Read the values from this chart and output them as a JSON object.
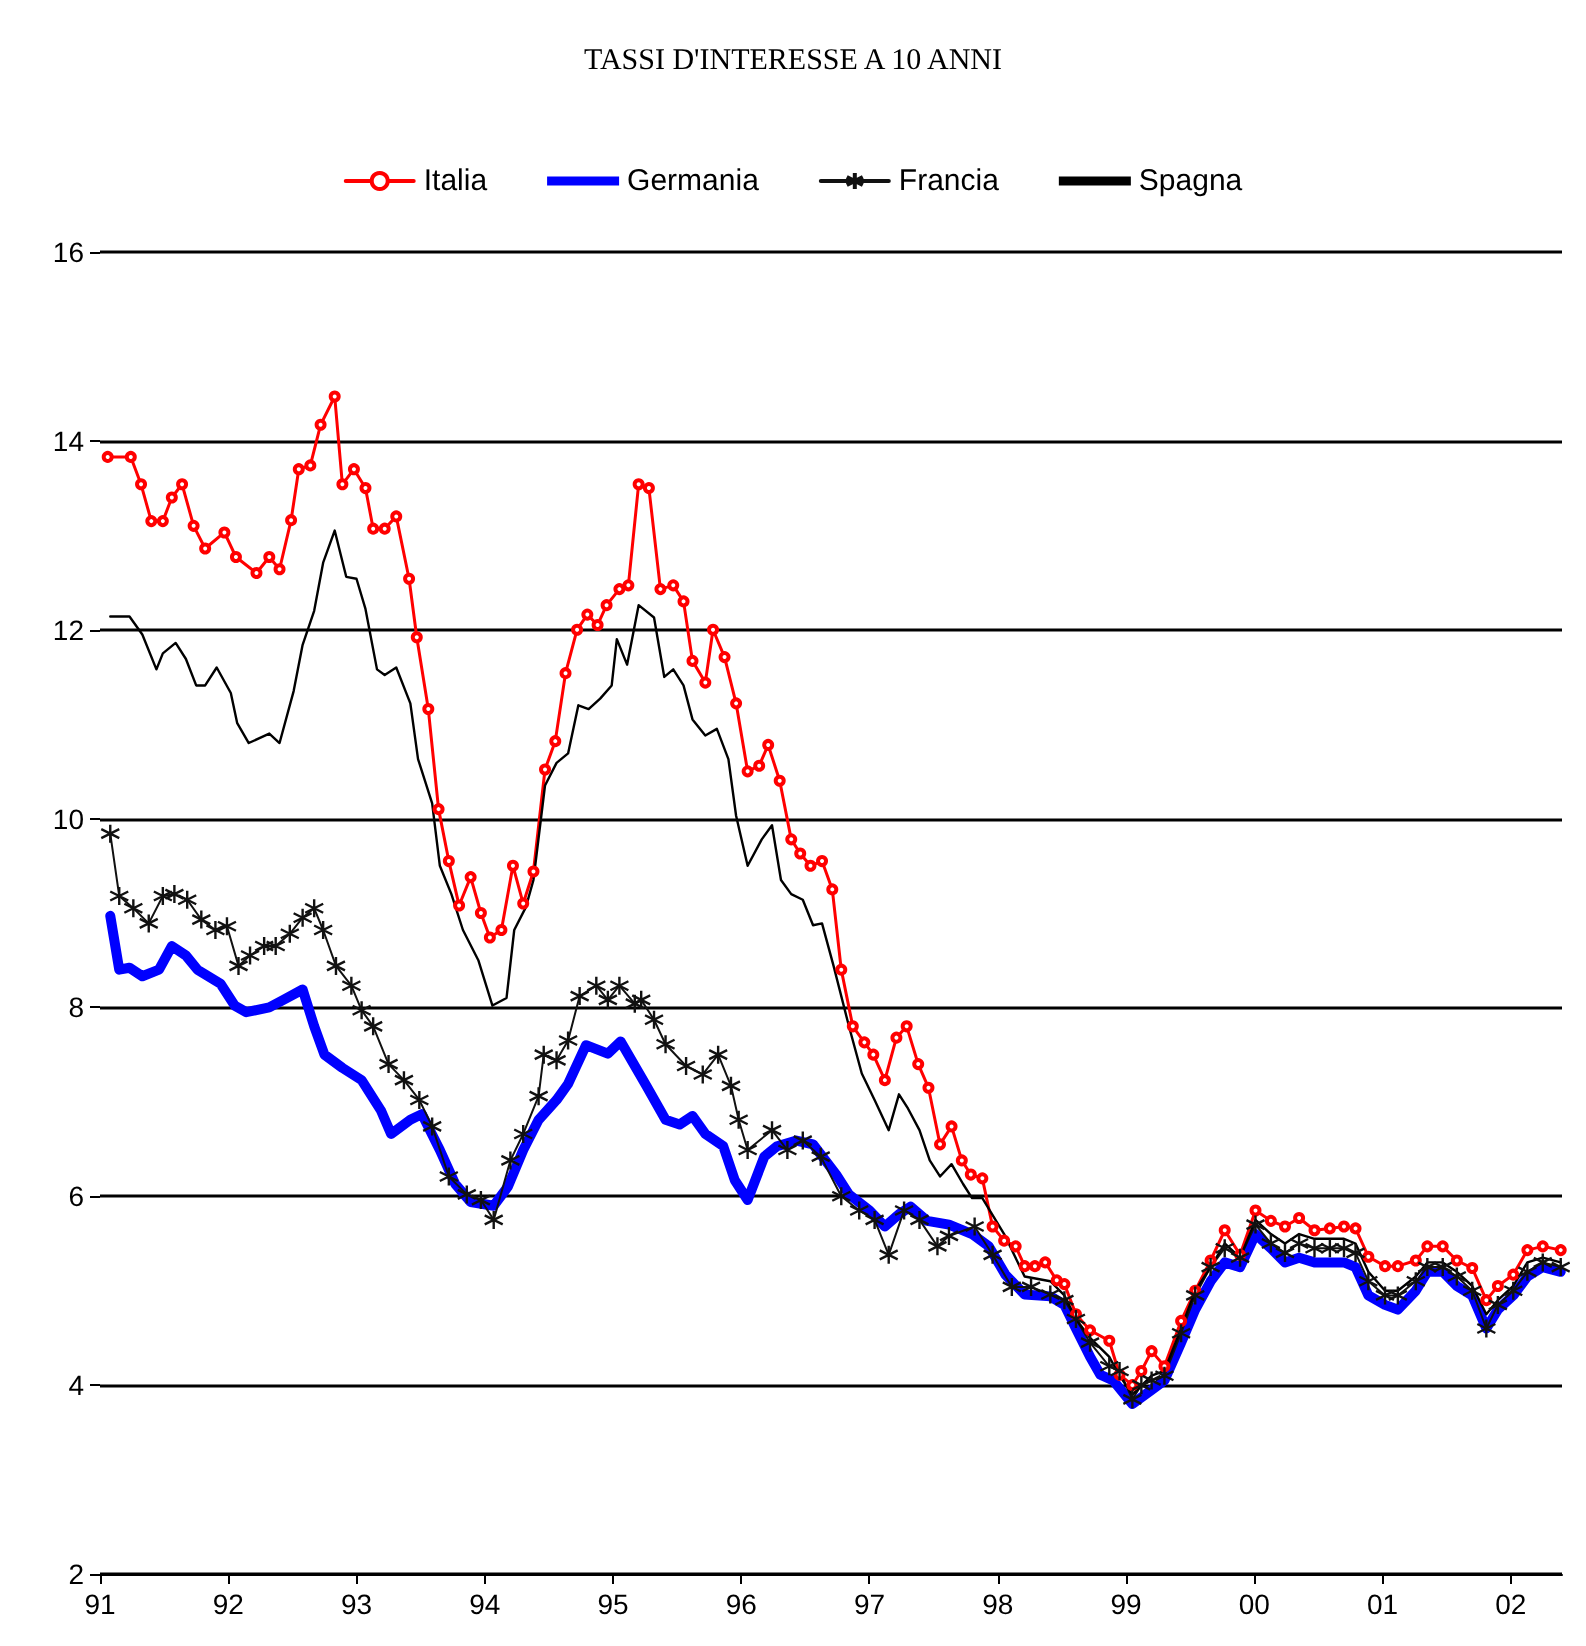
{
  "chart_data": {
    "type": "line",
    "title": "TASSI D'INTERESSE A 10 ANNI",
    "legend": "top",
    "grid": "y",
    "xlim": [
      1991,
      2002.4
    ],
    "xticks": [
      {
        "value": 1991,
        "label": "91"
      },
      {
        "value": 1992,
        "label": "92"
      },
      {
        "value": 1993,
        "label": "93"
      },
      {
        "value": 1994,
        "label": "94"
      },
      {
        "value": 1995,
        "label": "95"
      },
      {
        "value": 1996,
        "label": "96"
      },
      {
        "value": 1997,
        "label": "97"
      },
      {
        "value": 1998,
        "label": "98"
      },
      {
        "value": 1999,
        "label": "99"
      },
      {
        "value": 2000,
        "label": "00"
      },
      {
        "value": 2001,
        "label": "01"
      },
      {
        "value": 2002,
        "label": "02"
      }
    ],
    "ylim": [
      2,
      16
    ],
    "yticks": [
      2,
      4,
      6,
      8,
      10,
      12,
      14,
      16
    ],
    "series": [
      {
        "name": "Italia",
        "color": "#ff0000",
        "marker": "circle",
        "x": [
          1991.06,
          1991.24,
          1991.32,
          1991.4,
          1991.49,
          1991.56,
          1991.64,
          1991.73,
          1991.82,
          1991.97,
          1992.06,
          1992.22,
          1992.32,
          1992.4,
          1992.49,
          1992.55,
          1992.64,
          1992.72,
          1992.83,
          1992.89,
          1992.98,
          1993.07,
          1993.13,
          1993.22,
          1993.31,
          1993.41,
          1993.47,
          1993.56,
          1993.64,
          1993.72,
          1993.8,
          1993.89,
          1993.97,
          1994.04,
          1994.13,
          1994.22,
          1994.3,
          1994.38,
          1994.47,
          1994.55,
          1994.63,
          1994.72,
          1994.8,
          1994.88,
          1994.95,
          1995.05,
          1995.12,
          1995.2,
          1995.28,
          1995.37,
          1995.47,
          1995.55,
          1995.62,
          1995.72,
          1995.78,
          1995.87,
          1995.96,
          1996.05,
          1996.14,
          1996.21,
          1996.3,
          1996.39,
          1996.46,
          1996.54,
          1996.63,
          1996.71,
          1996.78,
          1996.87,
          1996.96,
          1997.03,
          1997.12,
          1997.21,
          1997.29,
          1997.38,
          1997.46,
          1997.55,
          1997.64,
          1997.72,
          1997.79,
          1997.88,
          1997.96,
          1998.05,
          1998.14,
          1998.21,
          1998.29,
          1998.37,
          1998.46,
          1998.52,
          1998.61,
          1998.72,
          1998.87,
          1998.95,
          1999.05,
          1999.12,
          1999.2,
          1999.3,
          1999.43,
          1999.54,
          1999.66,
          1999.77,
          1999.89,
          2000.01,
          2000.13,
          2000.24,
          2000.35,
          2000.47,
          2000.59,
          2000.7,
          2000.79,
          2000.89,
          2001.02,
          2001.12,
          2001.26,
          2001.35,
          2001.47,
          2001.58,
          2001.7,
          2001.81,
          2001.9,
          2002.02,
          2002.13,
          2002.25,
          2002.39
        ],
        "values": [
          13.83,
          13.83,
          13.54,
          13.15,
          13.15,
          13.4,
          13.54,
          13.1,
          12.86,
          13.03,
          12.77,
          12.6,
          12.77,
          12.64,
          13.16,
          13.7,
          13.74,
          14.17,
          14.47,
          13.54,
          13.7,
          13.5,
          13.07,
          13.07,
          13.2,
          12.54,
          11.92,
          11.16,
          10.1,
          9.55,
          9.08,
          9.38,
          9.0,
          8.74,
          8.82,
          9.5,
          9.1,
          9.44,
          10.52,
          10.82,
          11.54,
          12.0,
          12.16,
          12.05,
          12.26,
          12.43,
          12.47,
          13.54,
          13.5,
          12.43,
          12.47,
          12.3,
          11.67,
          11.44,
          12.0,
          11.71,
          11.22,
          10.5,
          10.56,
          10.78,
          10.4,
          9.78,
          9.63,
          9.5,
          9.55,
          9.25,
          8.4,
          7.8,
          7.63,
          7.5,
          7.23,
          7.68,
          7.8,
          7.4,
          7.15,
          6.55,
          6.74,
          6.38,
          6.23,
          6.19,
          5.68,
          5.53,
          5.47,
          5.26,
          5.26,
          5.3,
          5.11,
          5.07,
          4.75,
          4.58,
          4.47,
          4.11,
          4.0,
          4.15,
          4.36,
          4.2,
          4.68,
          5.0,
          5.32,
          5.64,
          5.38,
          5.85,
          5.74,
          5.68,
          5.77,
          5.64,
          5.66,
          5.68,
          5.66,
          5.36,
          5.26,
          5.26,
          5.32,
          5.47,
          5.47,
          5.32,
          5.24,
          4.9,
          5.05,
          5.17,
          5.43,
          5.47,
          5.43
        ]
      },
      {
        "name": "Germania",
        "color": "#0000ff",
        "marker": "none",
        "x": [
          1991.08,
          1991.15,
          1991.23,
          1991.33,
          1991.46,
          1991.56,
          1991.67,
          1991.76,
          1991.94,
          1992.05,
          1992.14,
          1992.32,
          1992.43,
          1992.58,
          1992.67,
          1992.75,
          1992.89,
          1993.04,
          1993.19,
          1993.27,
          1993.42,
          1993.51,
          1993.65,
          1993.77,
          1993.89,
          1994.07,
          1994.18,
          1994.3,
          1994.42,
          1994.56,
          1994.65,
          1994.79,
          1994.96,
          1995.06,
          1995.26,
          1995.41,
          1995.52,
          1995.62,
          1995.72,
          1995.86,
          1995.95,
          1996.05,
          1996.18,
          1996.28,
          1996.43,
          1996.56,
          1996.74,
          1996.84,
          1997.0,
          1997.12,
          1997.23,
          1997.32,
          1997.45,
          1997.62,
          1997.8,
          1997.93,
          1998.06,
          1998.21,
          1998.41,
          1998.52,
          1998.61,
          1998.72,
          1998.8,
          1998.9,
          1999.05,
          1999.2,
          1999.3,
          1999.43,
          1999.54,
          1999.66,
          1999.77,
          1999.89,
          2000.01,
          2000.13,
          2000.24,
          2000.35,
          2000.47,
          2000.59,
          2000.7,
          2000.79,
          2000.89,
          2001.02,
          2001.12,
          2001.26,
          2001.35,
          2001.47,
          2001.58,
          2001.7,
          2001.81,
          2001.9,
          2002.02,
          2002.13,
          2002.25,
          2002.39
        ],
        "values": [
          8.97,
          8.4,
          8.42,
          8.33,
          8.4,
          8.65,
          8.55,
          8.4,
          8.25,
          8.02,
          7.95,
          8.0,
          8.08,
          8.19,
          7.8,
          7.5,
          7.36,
          7.23,
          6.91,
          6.66,
          6.81,
          6.87,
          6.49,
          6.13,
          5.94,
          5.9,
          6.1,
          6.49,
          6.81,
          7.02,
          7.19,
          7.6,
          7.51,
          7.64,
          7.17,
          6.81,
          6.76,
          6.85,
          6.66,
          6.53,
          6.17,
          5.96,
          6.42,
          6.53,
          6.59,
          6.55,
          6.23,
          6.02,
          5.85,
          5.68,
          5.81,
          5.89,
          5.74,
          5.7,
          5.6,
          5.47,
          5.17,
          4.96,
          4.94,
          4.85,
          4.6,
          4.3,
          4.11,
          4.05,
          3.8,
          3.95,
          4.05,
          4.45,
          4.8,
          5.1,
          5.3,
          5.25,
          5.6,
          5.45,
          5.3,
          5.35,
          5.3,
          5.3,
          5.3,
          5.25,
          4.95,
          4.85,
          4.8,
          5.0,
          5.2,
          5.2,
          5.05,
          4.95,
          4.6,
          4.8,
          4.95,
          5.15,
          5.25,
          5.2
        ]
      },
      {
        "name": "Francia",
        "color": "#111111",
        "marker": "cross",
        "x": [
          1991.08,
          1991.15,
          1991.26,
          1991.38,
          1991.49,
          1991.58,
          1991.68,
          1991.79,
          1991.9,
          1991.99,
          1992.08,
          1992.17,
          1992.28,
          1992.37,
          1992.48,
          1992.58,
          1992.67,
          1992.74,
          1992.84,
          1992.96,
          1993.04,
          1993.13,
          1993.25,
          1993.37,
          1993.49,
          1993.59,
          1993.72,
          1993.86,
          1993.97,
          1994.07,
          1994.2,
          1994.3,
          1994.42,
          1994.46,
          1994.56,
          1994.65,
          1994.74,
          1994.87,
          1994.96,
          1995.05,
          1995.17,
          1995.22,
          1995.32,
          1995.41,
          1995.57,
          1995.7,
          1995.82,
          1995.92,
          1995.98,
          1996.05,
          1996.24,
          1996.36,
          1996.48,
          1996.62,
          1996.78,
          1996.92,
          1997.04,
          1997.15,
          1997.27,
          1997.39,
          1997.53,
          1997.62,
          1997.82,
          1997.96,
          1998.11,
          1998.26,
          1998.41,
          1998.52,
          1998.61,
          1998.72,
          1998.87,
          1998.95,
          1999.05,
          1999.12,
          1999.2,
          1999.3,
          1999.43,
          1999.54,
          1999.66,
          1999.77,
          1999.89,
          2000.01,
          2000.13,
          2000.24,
          2000.35,
          2000.47,
          2000.59,
          2000.7,
          2000.79,
          2000.89,
          2001.02,
          2001.12,
          2001.26,
          2001.35,
          2001.47,
          2001.58,
          2001.7,
          2001.81,
          2001.9,
          2002.02,
          2002.13,
          2002.25,
          2002.39
        ],
        "values": [
          9.84,
          9.18,
          9.05,
          8.89,
          9.18,
          9.2,
          9.14,
          8.93,
          8.82,
          8.86,
          8.44,
          8.55,
          8.65,
          8.65,
          8.78,
          8.95,
          9.05,
          8.82,
          8.44,
          8.23,
          7.97,
          7.8,
          7.4,
          7.23,
          7.02,
          6.74,
          6.21,
          6.02,
          5.96,
          5.75,
          6.38,
          6.66,
          7.06,
          7.5,
          7.44,
          7.65,
          8.12,
          8.23,
          8.08,
          8.23,
          8.04,
          8.08,
          7.87,
          7.61,
          7.38,
          7.29,
          7.5,
          7.17,
          6.81,
          6.49,
          6.7,
          6.49,
          6.59,
          6.42,
          6.0,
          5.85,
          5.75,
          5.38,
          5.85,
          5.75,
          5.47,
          5.58,
          5.68,
          5.38,
          5.04,
          5.04,
          4.96,
          4.9,
          4.7,
          4.45,
          4.2,
          4.15,
          3.85,
          4.0,
          4.05,
          4.1,
          4.55,
          4.95,
          5.25,
          5.45,
          5.35,
          5.7,
          5.5,
          5.4,
          5.5,
          5.45,
          5.45,
          5.45,
          5.4,
          5.1,
          4.95,
          4.95,
          5.1,
          5.25,
          5.25,
          5.15,
          5.0,
          4.6,
          4.85,
          5.0,
          5.2,
          5.3,
          5.25
        ]
      },
      {
        "name": "Spagna",
        "color": "#000000",
        "marker": "none",
        "x": [
          1991.08,
          1991.23,
          1991.33,
          1991.44,
          1991.49,
          1991.59,
          1991.67,
          1991.75,
          1991.82,
          1991.91,
          1992.02,
          1992.07,
          1992.16,
          1992.32,
          1992.4,
          1992.51,
          1992.58,
          1992.67,
          1992.74,
          1992.83,
          1992.92,
          1993.0,
          1993.07,
          1993.16,
          1993.22,
          1993.31,
          1993.42,
          1993.48,
          1993.59,
          1993.65,
          1993.74,
          1993.83,
          1993.95,
          1994.06,
          1994.17,
          1994.23,
          1994.32,
          1994.38,
          1994.47,
          1994.56,
          1994.65,
          1994.73,
          1994.81,
          1994.9,
          1994.99,
          1995.03,
          1995.11,
          1995.2,
          1995.32,
          1995.4,
          1995.47,
          1995.55,
          1995.62,
          1995.72,
          1995.81,
          1995.9,
          1995.96,
          1996.05,
          1996.16,
          1996.24,
          1996.31,
          1996.39,
          1996.48,
          1996.56,
          1996.63,
          1996.72,
          1996.84,
          1996.94,
          1997.04,
          1997.15,
          1997.23,
          1997.3,
          1997.39,
          1997.47,
          1997.55,
          1997.64,
          1997.73,
          1997.8,
          1997.88,
          1998.05,
          1998.21,
          1998.41,
          1998.52,
          1998.61,
          1998.72,
          1998.87,
          1998.95,
          1999.05,
          1999.2,
          1999.3,
          1999.43,
          1999.54,
          1999.66,
          1999.77,
          1999.89,
          2000.01,
          2000.13,
          2000.24,
          2000.35,
          2000.47,
          2000.59,
          2000.7,
          2000.79,
          2000.89,
          2001.02,
          2001.12,
          2001.26,
          2001.35,
          2001.47,
          2001.58,
          2001.7,
          2001.81,
          2001.9,
          2002.02,
          2002.13,
          2002.25,
          2002.39
        ],
        "values": [
          12.14,
          12.14,
          11.95,
          11.58,
          11.75,
          11.86,
          11.69,
          11.41,
          11.41,
          11.6,
          11.33,
          11.01,
          10.8,
          10.9,
          10.8,
          11.35,
          11.84,
          12.2,
          12.71,
          13.05,
          12.56,
          12.54,
          12.22,
          11.58,
          11.52,
          11.6,
          11.22,
          10.63,
          10.16,
          9.5,
          9.2,
          8.82,
          8.5,
          8.02,
          8.1,
          8.82,
          9.06,
          9.35,
          10.35,
          10.59,
          10.69,
          11.2,
          11.16,
          11.27,
          11.41,
          11.9,
          11.63,
          12.26,
          12.13,
          11.5,
          11.58,
          11.41,
          11.05,
          10.88,
          10.95,
          10.63,
          10.03,
          9.5,
          9.78,
          9.93,
          9.35,
          9.2,
          9.14,
          8.87,
          8.89,
          8.44,
          7.8,
          7.3,
          7.02,
          6.7,
          7.08,
          6.93,
          6.7,
          6.38,
          6.21,
          6.34,
          6.13,
          5.98,
          5.98,
          5.6,
          5.15,
          5.1,
          4.95,
          4.7,
          4.5,
          4.3,
          4.1,
          3.9,
          4.1,
          4.15,
          4.6,
          5.0,
          5.25,
          5.5,
          5.35,
          5.75,
          5.6,
          5.5,
          5.6,
          5.55,
          5.55,
          5.55,
          5.5,
          5.2,
          5.0,
          5.0,
          5.15,
          5.3,
          5.3,
          5.2,
          5.05,
          4.75,
          4.9,
          5.05,
          5.3,
          5.35,
          5.3
        ]
      }
    ]
  }
}
